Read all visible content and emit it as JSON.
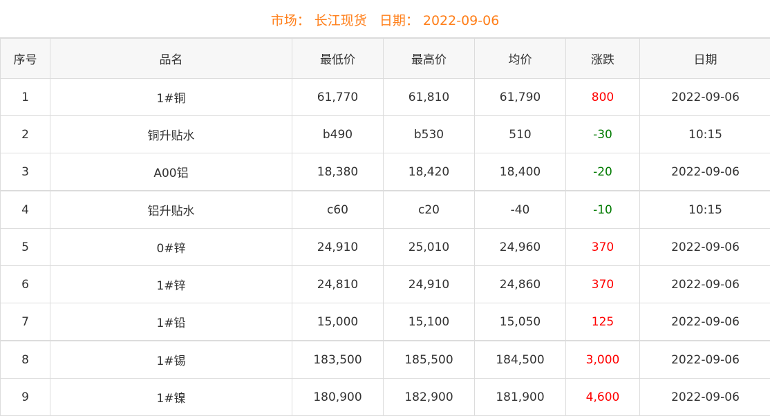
{
  "header": {
    "market_label": "市场：",
    "market": "长江现货",
    "date_label": "日期：",
    "date": "2022-09-06"
  },
  "colors": {
    "title": "#ff7f1a",
    "up": "#ff0000",
    "down": "#007a00"
  },
  "columns": [
    "序号",
    "品名",
    "最低价",
    "最高价",
    "均价",
    "涨跌",
    "日期"
  ],
  "rows": [
    {
      "no": "1",
      "name": "1#铜",
      "low": "61,770",
      "high": "61,810",
      "avg": "61,790",
      "change": "800",
      "dir": "up",
      "date": "2022-09-06"
    },
    {
      "no": "2",
      "name": "铜升贴水",
      "low": "b490",
      "high": "b530",
      "avg": "510",
      "change": "-30",
      "dir": "down",
      "date": "10:15"
    },
    {
      "no": "3",
      "name": "A00铝",
      "low": "18,380",
      "high": "18,420",
      "avg": "18,400",
      "change": "-20",
      "dir": "down",
      "date": "2022-09-06"
    },
    {
      "no": "4",
      "name": "铝升贴水",
      "low": "c60",
      "high": "c20",
      "avg": "-40",
      "change": "-10",
      "dir": "down",
      "date": "10:15"
    },
    {
      "no": "5",
      "name": "0#锌",
      "low": "24,910",
      "high": "25,010",
      "avg": "24,960",
      "change": "370",
      "dir": "up",
      "date": "2022-09-06"
    },
    {
      "no": "6",
      "name": "1#锌",
      "low": "24,810",
      "high": "24,910",
      "avg": "24,860",
      "change": "370",
      "dir": "up",
      "date": "2022-09-06"
    },
    {
      "no": "7",
      "name": "1#铅",
      "low": "15,000",
      "high": "15,100",
      "avg": "15,050",
      "change": "125",
      "dir": "up",
      "date": "2022-09-06"
    },
    {
      "no": "8",
      "name": "1#锡",
      "low": "183,500",
      "high": "185,500",
      "avg": "184,500",
      "change": "3,000",
      "dir": "up",
      "date": "2022-09-06"
    },
    {
      "no": "9",
      "name": "1#镍",
      "low": "180,900",
      "high": "182,900",
      "avg": "181,900",
      "change": "4,600",
      "dir": "up",
      "date": "2022-09-06"
    }
  ]
}
